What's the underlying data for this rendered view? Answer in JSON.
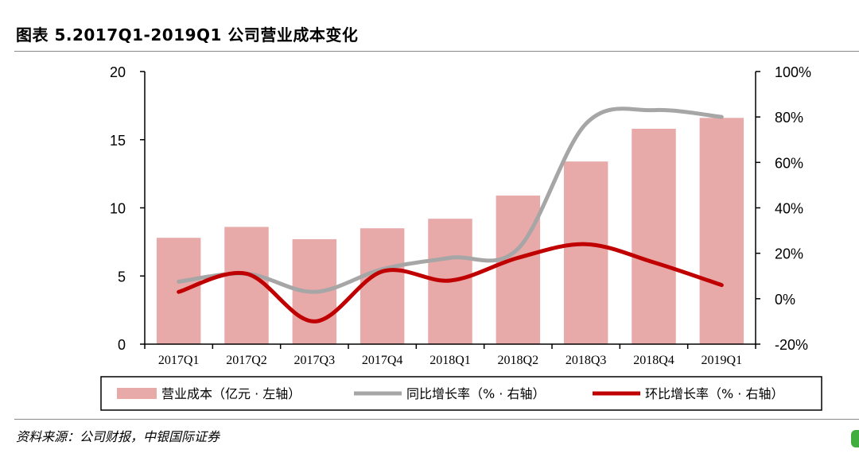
{
  "title": "图表 5.2017Q1-2019Q1 公司营业成本变化",
  "source": "资料来源：公司财报，中银国际证券",
  "chart_data": {
    "type": "bar+line",
    "categories": [
      "2017Q1",
      "2017Q2",
      "2017Q3",
      "2017Q4",
      "2018Q1",
      "2018Q2",
      "2018Q3",
      "2018Q4",
      "2019Q1"
    ],
    "left_axis": {
      "ylim": [
        0,
        20
      ],
      "ticks": [
        0,
        5,
        10,
        15,
        20
      ],
      "tick_labels": [
        "0",
        "5",
        "10",
        "15",
        "20"
      ]
    },
    "right_axis": {
      "ylim": [
        -20,
        100
      ],
      "ticks": [
        -20,
        0,
        20,
        40,
        60,
        80,
        100
      ],
      "tick_labels": [
        "-20%",
        "0%",
        "20%",
        "40%",
        "60%",
        "80%",
        "100%"
      ]
    },
    "series": [
      {
        "name": "营业成本（亿元 · 左轴）",
        "type": "bar",
        "axis": "left",
        "color": "#e8a9a9",
        "values": [
          7.8,
          8.6,
          7.7,
          8.5,
          9.2,
          10.9,
          13.4,
          15.8,
          16.6
        ]
      },
      {
        "name": "同比增长率（% · 右轴）",
        "type": "line",
        "axis": "right",
        "color": "#a6a6a6",
        "values": [
          7.5,
          11,
          3,
          13,
          18,
          22,
          77,
          83,
          80
        ]
      },
      {
        "name": "环比增长率（% · 右轴）",
        "type": "line",
        "axis": "right",
        "color": "#c00000",
        "values": [
          3,
          11,
          -10,
          12,
          8,
          18,
          24,
          16,
          6
        ]
      }
    ],
    "legend_position": "bottom",
    "grid": false
  }
}
